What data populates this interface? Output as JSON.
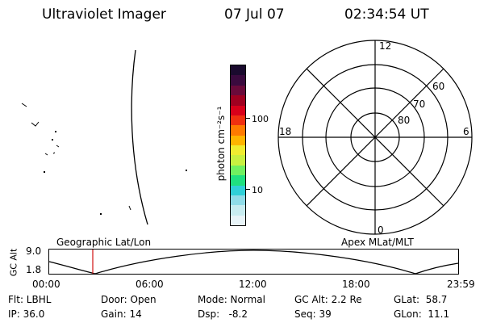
{
  "header": {
    "title": "Ultraviolet Imager",
    "date": "07 Jul 07",
    "time": "02:34:54 UT"
  },
  "colorbar": {
    "unit_label": "photon cm⁻²s⁻¹",
    "tick_100": "100",
    "tick_10": "10",
    "colors": [
      "#1a0a2e",
      "#3a0a3e",
      "#6a0a3a",
      "#a00020",
      "#d8001a",
      "#f03010",
      "#ff7a00",
      "#ffb400",
      "#f0ec30",
      "#c8f040",
      "#70f060",
      "#20e080",
      "#30d0d8",
      "#90dce8",
      "#c8ecf0",
      "#e8f4f8"
    ]
  },
  "polar": {
    "label_12": "12",
    "label_18": "18",
    "label_6": "6",
    "label_0": "0",
    "label_60": "60",
    "label_70": "70",
    "label_80": "80"
  },
  "timeline": {
    "left_label": "Geographic Lat/Lon",
    "right_label": "Apex MLat/MLT",
    "axis_title": "GC Alt",
    "y_max": "9.0",
    "y_min": "1.8",
    "ticks": [
      "00:00",
      "06:00",
      "12:00",
      "18:00",
      "23:59"
    ]
  },
  "status": {
    "flt": "Flt: LBHL",
    "ip": "IP: 36.0",
    "door": "Door: Open",
    "gain": "Gain: 14",
    "mode": "Mode: Normal",
    "dsp": "Dsp:   -8.2",
    "gcalt": "GC Alt: 2.2 Re",
    "seq": "Seq: 39",
    "glat": "GLat:  58.7",
    "glon": "GLon:  11.1"
  }
}
